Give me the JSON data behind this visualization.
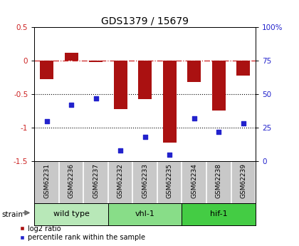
{
  "title": "GDS1379 / 15679",
  "samples": [
    "GSM62231",
    "GSM62236",
    "GSM62237",
    "GSM62232",
    "GSM62233",
    "GSM62235",
    "GSM62234",
    "GSM62238",
    "GSM62239"
  ],
  "log2_ratio": [
    -0.28,
    0.12,
    -0.02,
    -0.72,
    -0.57,
    -1.22,
    -0.32,
    -0.75,
    -0.22
  ],
  "percentile_rank": [
    30,
    42,
    47,
    8,
    18,
    5,
    32,
    22,
    28
  ],
  "groups": [
    {
      "label": "wild type",
      "start": 0,
      "end": 3,
      "color": "#b8e8b8"
    },
    {
      "label": "vhl-1",
      "start": 3,
      "end": 6,
      "color": "#88dd88"
    },
    {
      "label": "hif-1",
      "start": 6,
      "end": 9,
      "color": "#44cc44"
    }
  ],
  "ylim_left": [
    -1.5,
    0.5
  ],
  "ylim_right": [
    0,
    100
  ],
  "bar_color": "#aa1111",
  "dot_color": "#2222cc",
  "bg_color": "#ffffff",
  "label_bg": "#c8c8c8",
  "dashed_color": "#cc2222",
  "title_fontsize": 10,
  "tick_fontsize": 7.5,
  "label_fontsize": 6.5
}
